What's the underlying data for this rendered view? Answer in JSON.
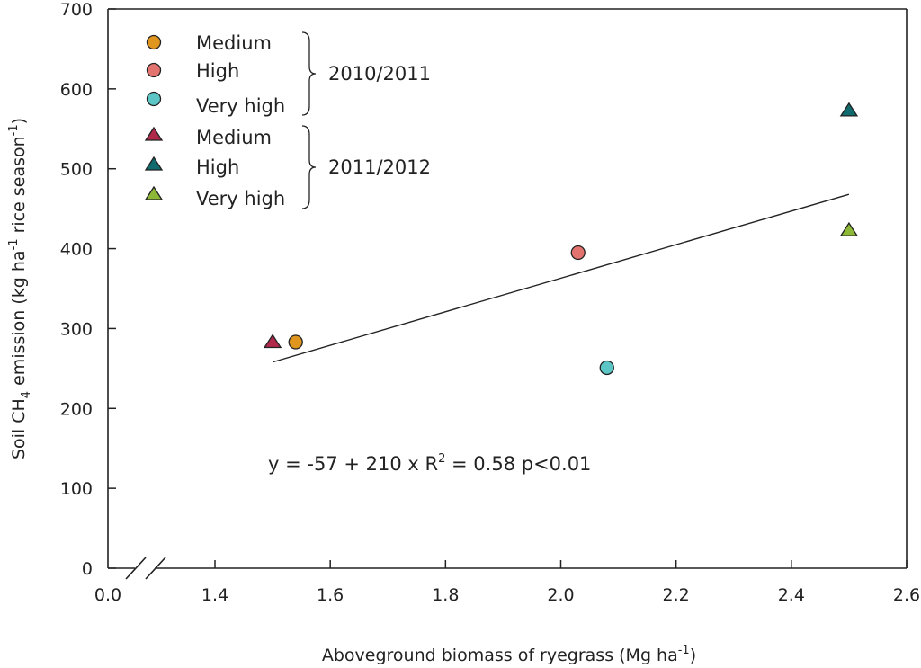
{
  "chart_data": {
    "type": "scatter",
    "title": "",
    "xlabel": "Aboveground biomass of ryegrass (Mg ha",
    "xlabel_sup": "-1",
    "xlabel_end": ")",
    "ylabel_parts": [
      "Soil CH",
      "4",
      " emission (kg ha",
      "-1",
      " rice season",
      "-1",
      ")"
    ],
    "x_axis": {
      "break": true,
      "origin_label": "0.0",
      "ticks": [
        1.4,
        1.6,
        1.8,
        2.0,
        2.2,
        2.4,
        2.6
      ],
      "tick_labels": [
        "1.4",
        "1.6",
        "1.8",
        "2.0",
        "2.2",
        "2.4",
        "2.6"
      ],
      "range": [
        1.2,
        2.6
      ]
    },
    "y_axis": {
      "ticks": [
        0,
        100,
        200,
        300,
        400,
        500,
        600,
        700
      ],
      "tick_labels": [
        "0",
        "100",
        "200",
        "300",
        "400",
        "500",
        "600",
        "700"
      ],
      "range": [
        0,
        700
      ]
    },
    "series": [
      {
        "name": "Medium",
        "season": "2010/2011",
        "marker": "circle",
        "color": "#E0961E",
        "x": [
          1.54
        ],
        "y": [
          283
        ]
      },
      {
        "name": "High",
        "season": "2010/2011",
        "marker": "circle",
        "color": "#E3736F",
        "x": [
          2.03
        ],
        "y": [
          395
        ]
      },
      {
        "name": "Very high",
        "season": "2010/2011",
        "marker": "circle",
        "color": "#5CC5C5",
        "x": [
          2.08
        ],
        "y": [
          251
        ]
      },
      {
        "name": "Medium",
        "season": "2011/2012",
        "marker": "triangle",
        "color": "#B0294B",
        "x": [
          1.5
        ],
        "y": [
          283
        ]
      },
      {
        "name": "High",
        "season": "2011/2012",
        "marker": "triangle",
        "color": "#0F6B6E",
        "x": [
          2.5
        ],
        "y": [
          573
        ]
      },
      {
        "name": "Very high",
        "season": "2011/2012",
        "marker": "triangle",
        "color": "#8DB737",
        "x": [
          2.5
        ],
        "y": [
          423
        ]
      }
    ],
    "legend_groups": [
      "2010/2011",
      "2011/2012"
    ],
    "legend_position": "top-left",
    "regression": {
      "intercept": -57,
      "slope": 210,
      "x_range": [
        1.5,
        2.5
      ],
      "equation_parts": [
        "y = -57 + 210 x  R",
        "2",
        " = 0.58  p<0.01"
      ]
    }
  }
}
